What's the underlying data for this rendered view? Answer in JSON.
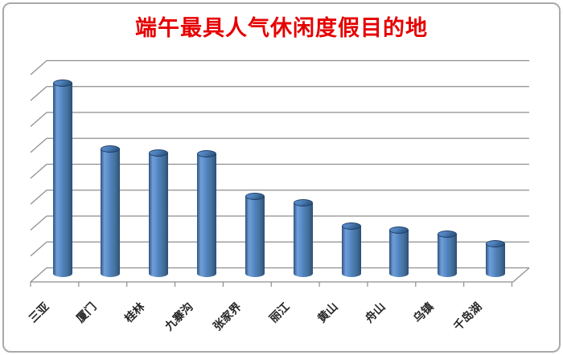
{
  "title": {
    "text": "端午最具人气休闲度假目的地",
    "color": "#e60000"
  },
  "chart_data": {
    "type": "bar",
    "style": "3d-cylinder",
    "title": "端午最具人气休闲度假目的地",
    "categories": [
      "三亚",
      "厦门",
      "桂林",
      "九寨沟",
      "张家界",
      "丽江",
      "黄山",
      "舟山",
      "乌镇",
      "千岛湖"
    ],
    "values": [
      7.4,
      4.87,
      4.71,
      4.68,
      3.04,
      2.78,
      1.88,
      1.74,
      1.57,
      1.22
    ],
    "xlabel": "",
    "ylabel": "",
    "ylim": [
      0,
      8
    ],
    "gridline_count": 9,
    "y_axis_tick_labels_visible": false,
    "legend_position": "none",
    "note": "value axis is unlabeled; values estimated in gridline units (1 unit per horizontal gridline interval)"
  },
  "colors": {
    "title_red": "#e60000",
    "bar_main": "#4f81bd",
    "bar_highlight": "#6f9ed8",
    "bar_dark_edge": "#2b4c72",
    "bar_top_rim": "#1e3f66",
    "gridline_gray": "#8e8e8e",
    "label_text": "#262626",
    "frame_border": "#a9a9a9",
    "background": "#ffffff"
  }
}
